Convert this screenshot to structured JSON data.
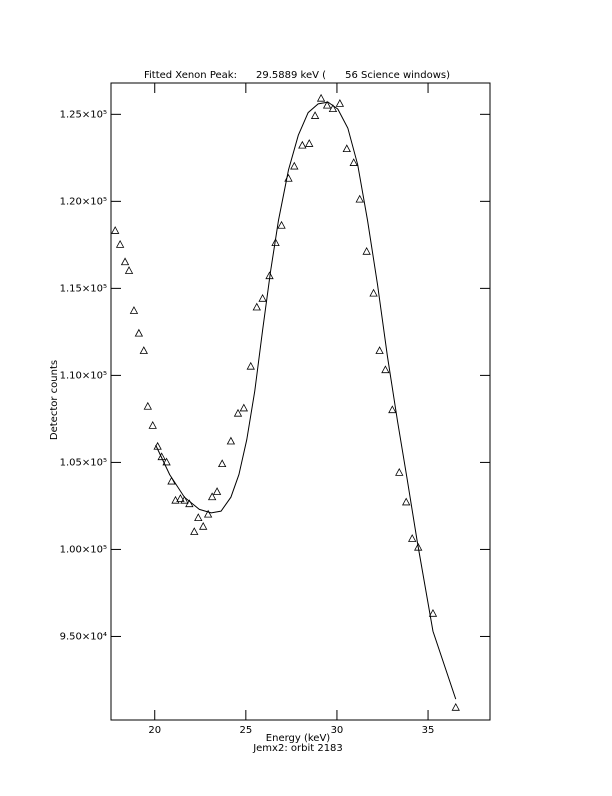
{
  "chart_data": {
    "type": "scatter",
    "title": "Fitted Xenon Peak:      29.5889 keV (      56 Science windows)",
    "x_label": "Energy (keV)",
    "subtitle": "Jemx2: orbit 2183",
    "y_label": "Detector counts",
    "xlim": [
      17.6,
      38.4
    ],
    "ylim": [
      90200,
      126800
    ],
    "xticks": [
      20,
      25,
      30,
      35
    ],
    "yticks": [
      {
        "value": 95000,
        "label": "9.50×10⁴"
      },
      {
        "value": 100000,
        "label": "1.00×10⁵"
      },
      {
        "value": 105000,
        "label": "1.05×10⁵"
      },
      {
        "value": 110000,
        "label": "1.10×10⁵"
      },
      {
        "value": 115000,
        "label": "1.15×10⁵"
      },
      {
        "value": 120000,
        "label": "1.20×10⁵"
      },
      {
        "value": 125000,
        "label": "1.25×10⁵"
      }
    ],
    "series": [
      {
        "type": "scatter",
        "marker": "triangle",
        "color": "#000000",
        "x": [
          17.83,
          18.1,
          18.37,
          18.59,
          18.86,
          19.13,
          19.4,
          19.62,
          19.89,
          20.16,
          20.38,
          20.65,
          20.92,
          21.14,
          21.41,
          21.63,
          21.9,
          22.17,
          22.39,
          22.66,
          22.93,
          23.15,
          23.42,
          23.7,
          24.18,
          24.57,
          24.89,
          25.27,
          25.6,
          25.92,
          26.3,
          26.63,
          26.96,
          27.34,
          27.66,
          28.1,
          28.48,
          28.8,
          29.13,
          29.46,
          29.78,
          30.16,
          30.54,
          30.92,
          31.25,
          31.63,
          32.01,
          32.34,
          32.66,
          33.04,
          33.42,
          33.8,
          34.13,
          34.46,
          35.27,
          36.52
        ],
        "values": [
          118300,
          117500,
          116500,
          116000,
          113700,
          112400,
          111400,
          108200,
          107100,
          105900,
          105300,
          105000,
          103900,
          102800,
          102900,
          102800,
          102600,
          101000,
          101800,
          101300,
          102000,
          103000,
          103300,
          104900,
          106200,
          107800,
          108100,
          110500,
          113900,
          114400,
          115700,
          117600,
          118600,
          121300,
          122000,
          123200,
          123300,
          124900,
          125900,
          125500,
          125300,
          125600,
          123000,
          122200,
          120100,
          117100,
          114700,
          111400,
          110300,
          108000,
          104400,
          102700,
          100600,
          100100,
          96300,
          90900
        ]
      },
      {
        "type": "line",
        "color": "#000000",
        "x": [
          20.05,
          20.82,
          21.63,
          22.45,
          23.1,
          23.64,
          24.18,
          24.62,
          25.05,
          25.49,
          25.92,
          26.36,
          26.79,
          27.34,
          27.88,
          28.42,
          28.97,
          29.51,
          30.05,
          30.6,
          31.14,
          31.68,
          32.23,
          32.77,
          33.32,
          33.86,
          34.4,
          35.27,
          36.52
        ],
        "values": [
          106000,
          104300,
          103000,
          102300,
          102100,
          102200,
          103000,
          104300,
          106300,
          109100,
          112600,
          116000,
          118900,
          121800,
          123800,
          125100,
          125600,
          125700,
          125300,
          124200,
          122100,
          118900,
          115200,
          111100,
          107400,
          104000,
          100500,
          95300,
          91400
        ]
      }
    ]
  }
}
